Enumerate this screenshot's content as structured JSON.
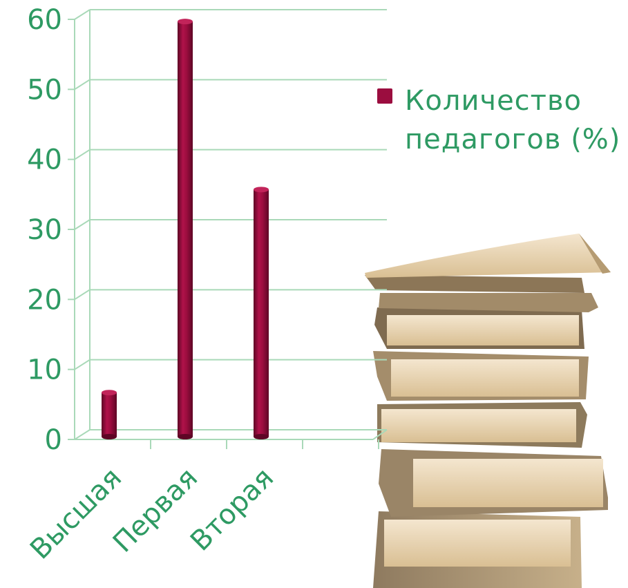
{
  "chart_data": {
    "type": "bar",
    "categories": [
      "Высшая",
      "Первая",
      "Вторая"
    ],
    "series": [
      {
        "name": "Количество педагогов (%)",
        "values": [
          6,
          59,
          35
        ]
      }
    ],
    "ylim": [
      0,
      60
    ],
    "yticks": [
      0,
      10,
      20,
      30,
      40,
      50,
      60
    ],
    "grid": true,
    "legend_position": "right",
    "colors": {
      "bar": "#9b0d3f",
      "bar_dark": "#5e0625",
      "bar_light": "#c2245a",
      "text": "#2e9a63",
      "grid": "#a9d9b8",
      "axis": "#a9d9b8"
    }
  }
}
